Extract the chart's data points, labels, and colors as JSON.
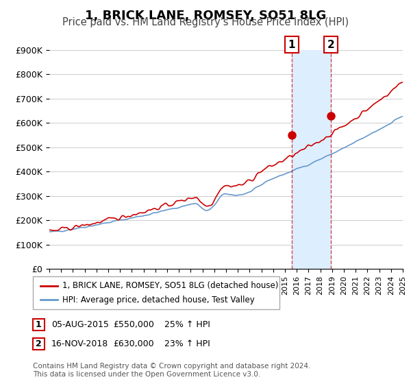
{
  "title": "1, BRICK LANE, ROMSEY, SO51 8LG",
  "subtitle": "Price paid vs. HM Land Registry's House Price Index (HPI)",
  "xlabel": "",
  "ylabel": "",
  "ylim": [
    0,
    900000
  ],
  "yticks": [
    0,
    100000,
    200000,
    300000,
    400000,
    500000,
    600000,
    700000,
    800000,
    900000
  ],
  "ytick_labels": [
    "£0",
    "£100K",
    "£200K",
    "£300K",
    "£400K",
    "£500K",
    "£600K",
    "£700K",
    "£800K",
    "£900K"
  ],
  "red_color": "#cc0000",
  "blue_color": "#6699cc",
  "shade_color": "#ddeeff",
  "grid_color": "#cccccc",
  "bg_color": "#ffffff",
  "marker1_date": 2015.58,
  "marker1_price": 550000,
  "marker1_label": "1",
  "marker2_date": 2018.88,
  "marker2_price": 630000,
  "marker2_label": "2",
  "legend_red": "1, BRICK LANE, ROMSEY, SO51 8LG (detached house)",
  "legend_blue": "HPI: Average price, detached house, Test Valley",
  "table_row1": "1     05-AUG-2015          £550,000          25% ↑ HPI",
  "table_row2": "2     16-NOV-2018          £630,000          23% ↑ HPI",
  "footnote": "Contains HM Land Registry data © Crown copyright and database right 2024.\nThis data is licensed under the Open Government Licence v3.0.",
  "title_fontsize": 13,
  "subtitle_fontsize": 10.5
}
